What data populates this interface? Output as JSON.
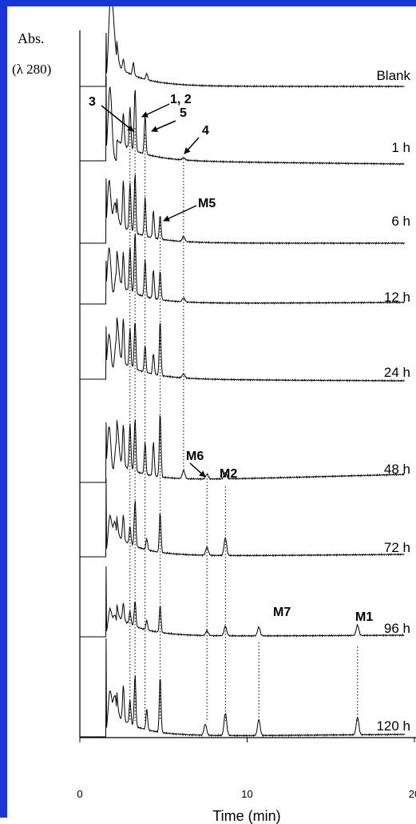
{
  "frame_color": "#1a35d6",
  "chart_data": {
    "type": "line",
    "title": "",
    "ylabel": "Abs.",
    "ylabel_sub": "(λ 280)",
    "xlabel": "Time (min)",
    "xlim": [
      0,
      20
    ],
    "x_ticks": [
      "0",
      "10",
      "20"
    ],
    "grid": false,
    "legend": "none",
    "series": [
      {
        "name": "Blank",
        "peaks": [
          [
            1.8,
            78
          ],
          [
            1.95,
            68
          ],
          [
            2.15,
            32
          ],
          [
            2.6,
            14
          ],
          [
            3.2,
            16
          ],
          [
            4.0,
            8
          ]
        ]
      },
      {
        "name": "1 h",
        "peaks": [
          [
            1.8,
            92
          ],
          [
            2.6,
            40
          ],
          [
            3.0,
            52
          ],
          [
            3.3,
            78
          ],
          [
            3.9,
            48
          ],
          [
            6.2,
            3
          ]
        ]
      },
      {
        "name": "6 h",
        "peaks": [
          [
            1.75,
            78
          ],
          [
            2.1,
            50
          ],
          [
            2.6,
            58
          ],
          [
            3.0,
            60
          ],
          [
            3.3,
            74
          ],
          [
            3.9,
            48
          ],
          [
            4.4,
            34
          ],
          [
            4.8,
            30
          ],
          [
            6.2,
            6
          ]
        ]
      },
      {
        "name": "12 h",
        "peaks": [
          [
            1.75,
            70
          ],
          [
            2.2,
            40
          ],
          [
            2.6,
            44
          ],
          [
            3.0,
            56
          ],
          [
            3.3,
            76
          ],
          [
            3.9,
            46
          ],
          [
            4.4,
            36
          ],
          [
            4.8,
            36
          ],
          [
            6.2,
            5
          ]
        ]
      },
      {
        "name": "24 h",
        "peaks": [
          [
            1.75,
            56
          ],
          [
            2.2,
            52
          ],
          [
            2.6,
            56
          ],
          [
            3.0,
            48
          ],
          [
            3.3,
            60
          ],
          [
            3.9,
            34
          ],
          [
            4.4,
            26
          ],
          [
            4.8,
            68
          ],
          [
            6.2,
            5
          ]
        ]
      },
      {
        "name": "48 h",
        "peaks": [
          [
            1.75,
            70
          ],
          [
            2.2,
            52
          ],
          [
            2.6,
            52
          ],
          [
            3.0,
            56
          ],
          [
            3.3,
            66
          ],
          [
            3.9,
            40
          ],
          [
            4.4,
            42
          ],
          [
            4.8,
            80
          ],
          [
            6.2,
            10
          ],
          [
            7.6,
            6
          ],
          [
            8.7,
            8
          ]
        ]
      },
      {
        "name": "72 h",
        "peaks": [
          [
            1.8,
            50
          ],
          [
            2.1,
            42
          ],
          [
            2.6,
            32
          ],
          [
            3.0,
            22
          ],
          [
            3.3,
            58
          ],
          [
            4.0,
            14
          ],
          [
            4.8,
            50
          ],
          [
            7.6,
            10
          ],
          [
            8.7,
            22
          ]
        ]
      },
      {
        "name": "96 h",
        "peaks": [
          [
            1.8,
            34
          ],
          [
            2.1,
            26
          ],
          [
            2.6,
            22
          ],
          [
            3.0,
            16
          ],
          [
            3.3,
            32
          ],
          [
            4.0,
            12
          ],
          [
            4.8,
            34
          ],
          [
            7.6,
            6
          ],
          [
            8.7,
            12
          ],
          [
            10.7,
            11
          ],
          [
            16.6,
            13
          ]
        ]
      },
      {
        "name": "120 h",
        "peaks": [
          [
            1.8,
            56
          ],
          [
            2.1,
            50
          ],
          [
            2.6,
            44
          ],
          [
            3.0,
            30
          ],
          [
            3.3,
            64
          ],
          [
            4.0,
            26
          ],
          [
            4.8,
            70
          ],
          [
            7.5,
            14
          ],
          [
            8.7,
            28
          ],
          [
            10.7,
            20
          ],
          [
            16.6,
            22
          ]
        ]
      }
    ],
    "annotations": [
      {
        "text": "3",
        "trace": 1,
        "x": 3.0
      },
      {
        "text": "1, 2",
        "trace": 1,
        "x": 3.3
      },
      {
        "text": "5",
        "trace": 1,
        "x": 3.9
      },
      {
        "text": "4",
        "trace": 1,
        "x": 6.2
      },
      {
        "text": "M5",
        "trace": 2,
        "x": 4.8
      },
      {
        "text": "M6",
        "trace": 5,
        "x": 7.6
      },
      {
        "text": "M2",
        "trace": 5,
        "x": 8.7
      },
      {
        "text": "M7",
        "trace": 7,
        "x": 10.7
      },
      {
        "text": "M1",
        "trace": 7,
        "x": 16.6
      }
    ],
    "reference_lines_x": [
      3.0,
      3.3,
      3.9,
      4.8,
      6.2,
      7.6,
      8.7,
      10.7,
      16.6
    ]
  }
}
